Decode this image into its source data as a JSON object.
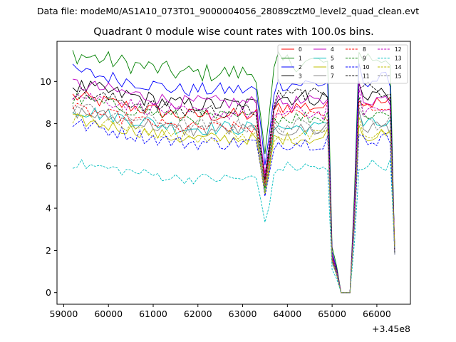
{
  "suptitle": "Data file: modeM0/AS1A10_073T01_9000004056_28089cztM0_level2_quad_clean.evt",
  "chart_data": {
    "type": "line",
    "title": "Quadrant 0 module wise count rates with 100.0s bins.",
    "xlabel": "",
    "ylabel": "",
    "x_offset_label": "+3.45e8",
    "xlim": [
      58850,
      66750
    ],
    "ylim": [
      -0.55,
      11.9
    ],
    "x_ticks": [
      59000,
      60000,
      61000,
      62000,
      63000,
      64000,
      65000,
      66000
    ],
    "x_tick_labels": [
      "59000",
      "60000",
      "61000",
      "62000",
      "63000",
      "64000",
      "65000",
      "66000"
    ],
    "y_ticks": [
      0,
      2,
      4,
      6,
      8,
      10
    ],
    "y_tick_labels": [
      "0",
      "2",
      "4",
      "6",
      "8",
      "10"
    ],
    "x_start": 59200,
    "x_step": 100,
    "legend_location": "top-right",
    "series": [
      {
        "name": "0",
        "color": "#ff0000",
        "dash": "solid",
        "level": 8.4,
        "amp": 0.35,
        "mul": 1.05
      },
      {
        "name": "1",
        "color": "#008000",
        "dash": "solid",
        "level": 10.4,
        "amp": 0.45,
        "mul": 1.05
      },
      {
        "name": "2",
        "color": "#0000ff",
        "dash": "solid",
        "level": 9.6,
        "amp": 0.35,
        "mul": 1.03
      },
      {
        "name": "3",
        "color": "#000000",
        "dash": "solid",
        "level": 8.9,
        "amp": 0.4,
        "mul": 1.04
      },
      {
        "name": "4",
        "color": "#bf00bf",
        "dash": "solid",
        "level": 9.0,
        "amp": 0.35,
        "mul": 1.0
      },
      {
        "name": "5",
        "color": "#00bfbf",
        "dash": "solid",
        "level": 7.8,
        "amp": 0.35,
        "mul": 1.0
      },
      {
        "name": "6",
        "color": "#bfbf00",
        "dash": "solid",
        "level": 7.3,
        "amp": 0.3,
        "mul": 1.0
      },
      {
        "name": "7",
        "color": "#808080",
        "dash": "solid",
        "level": 7.7,
        "amp": 0.35,
        "mul": 1.0
      },
      {
        "name": "8",
        "color": "#ff0000",
        "dash": "dashed",
        "level": 7.8,
        "amp": 0.3,
        "mul": 1.1
      },
      {
        "name": "9",
        "color": "#008000",
        "dash": "dashed",
        "level": 8.3,
        "amp": 0.35,
        "mul": 1.0
      },
      {
        "name": "10",
        "color": "#0000ff",
        "dash": "dashed",
        "level": 7.1,
        "amp": 0.35,
        "mul": 1.0
      },
      {
        "name": "11",
        "color": "#000000",
        "dash": "dashed",
        "level": 8.6,
        "amp": 0.35,
        "mul": 1.1
      },
      {
        "name": "12",
        "color": "#bf00bf",
        "dash": "dashed",
        "level": 8.5,
        "amp": 0.35,
        "mul": 1.0
      },
      {
        "name": "13",
        "color": "#00bfbf",
        "dash": "dashed",
        "level": 5.4,
        "amp": 0.25,
        "mul": 1.1
      },
      {
        "name": "14",
        "color": "#bfbf00",
        "dash": "dashed",
        "level": 7.4,
        "amp": 0.3,
        "mul": 1.0
      },
      {
        "name": "15",
        "color": "#808080",
        "dash": "dashed",
        "level": 7.9,
        "amp": 0.35,
        "mul": 1.0
      }
    ]
  }
}
